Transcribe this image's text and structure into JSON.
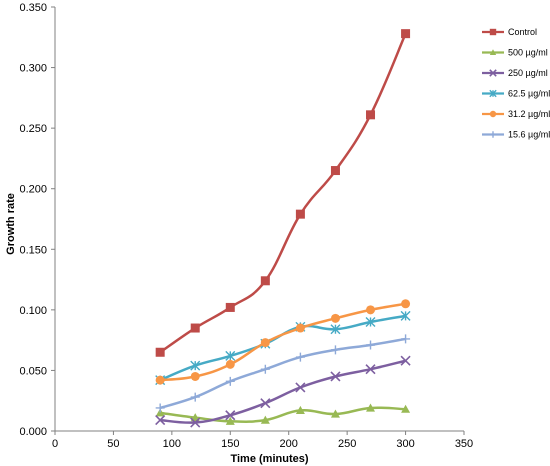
{
  "chart_data": {
    "type": "line",
    "title": "",
    "xlabel": "Time (minutes)",
    "ylabel": "Growth rate",
    "xlim": [
      0,
      350
    ],
    "ylim": [
      0,
      0.35
    ],
    "x_ticks": [
      "0",
      "50",
      "100",
      "150",
      "200",
      "250",
      "300",
      "350"
    ],
    "x_tick_values": [
      0,
      50,
      100,
      150,
      200,
      250,
      300,
      350
    ],
    "y_ticks": [
      "0.000",
      "0.050",
      "0.100",
      "0.150",
      "0.200",
      "0.250",
      "0.300",
      "0.350"
    ],
    "y_tick_values": [
      0,
      0.05,
      0.1,
      0.15,
      0.2,
      0.25,
      0.3,
      0.35
    ],
    "grid": false,
    "legend_position": "top-right",
    "x": [
      90,
      120,
      150,
      180,
      210,
      240,
      270,
      300
    ],
    "series": [
      {
        "name": "Control",
        "color": "#BE4B48",
        "marker": "square",
        "values": [
          0.065,
          0.085,
          0.102,
          0.124,
          0.179,
          0.215,
          0.261,
          0.328
        ]
      },
      {
        "name": "500 µg/ml",
        "color": "#98B954",
        "marker": "triangle",
        "values": [
          0.015,
          0.011,
          0.008,
          0.009,
          0.017,
          0.014,
          0.019,
          0.018
        ]
      },
      {
        "name": "250 µg/ml",
        "color": "#7D5FA0",
        "marker": "x",
        "values": [
          0.009,
          0.007,
          0.013,
          0.023,
          0.036,
          0.045,
          0.051,
          0.058
        ]
      },
      {
        "name": "62.5 µg/ml",
        "color": "#46AAC5",
        "marker": "star",
        "values": [
          0.042,
          0.054,
          0.062,
          0.072,
          0.086,
          0.084,
          0.09,
          0.095
        ]
      },
      {
        "name": "31.2 µg/ml",
        "color": "#F79646",
        "marker": "circle",
        "values": [
          0.042,
          0.045,
          0.055,
          0.073,
          0.085,
          0.093,
          0.1,
          0.105
        ]
      },
      {
        "name": "15.6 µg/ml",
        "color": "#8EA9D8",
        "marker": "plus",
        "values": [
          0.019,
          0.028,
          0.041,
          0.051,
          0.061,
          0.067,
          0.071,
          0.076
        ]
      }
    ]
  }
}
